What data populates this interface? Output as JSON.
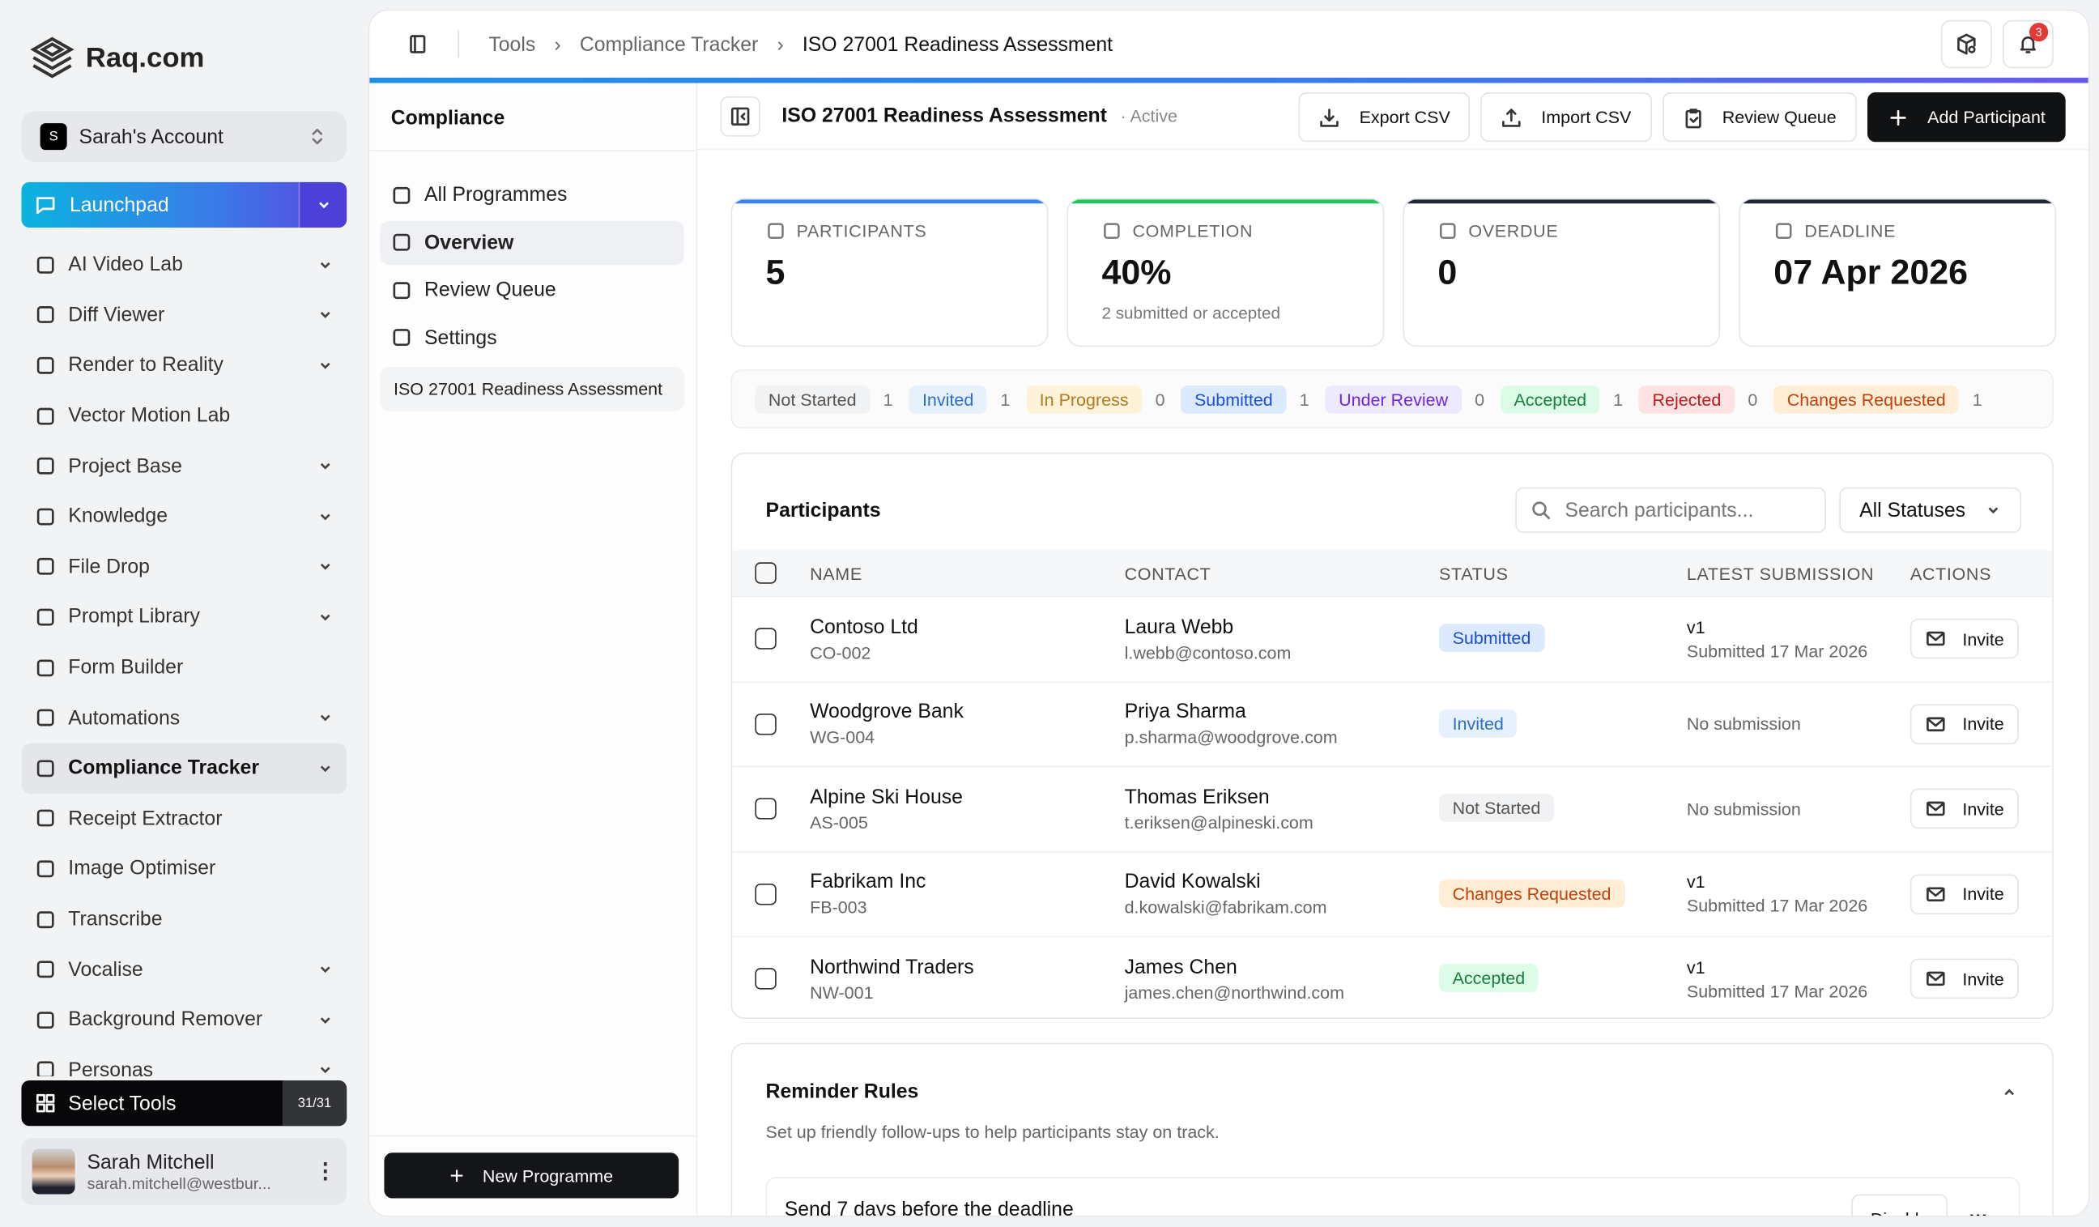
{
  "brand": {
    "name": "Raq.com"
  },
  "account": {
    "initial": "S",
    "name": "Sarah's Account"
  },
  "launchpad": {
    "label": "Launchpad"
  },
  "sidebar": {
    "items": [
      {
        "label": "AI Video Lab",
        "icon": "clapperboard-icon",
        "chevron": true
      },
      {
        "label": "Diff Viewer",
        "icon": "git-compare-icon",
        "chevron": true
      },
      {
        "label": "Render to Reality",
        "icon": "camera-rotate-icon",
        "chevron": true
      },
      {
        "label": "Vector Motion Lab",
        "icon": "pen-motion-icon",
        "chevron": false
      },
      {
        "label": "Project Base",
        "icon": "target-icon",
        "chevron": true
      },
      {
        "label": "Knowledge",
        "icon": "library-icon",
        "chevron": true
      },
      {
        "label": "File Drop",
        "icon": "cloud-upload-icon",
        "chevron": true
      },
      {
        "label": "Prompt Library",
        "icon": "book-open-icon",
        "chevron": true
      },
      {
        "label": "Form Builder",
        "icon": "clipboard-list-icon",
        "chevron": false
      },
      {
        "label": "Automations",
        "icon": "workflow-icon",
        "chevron": true
      },
      {
        "label": "Compliance Tracker",
        "icon": "shield-check-icon",
        "chevron": true,
        "active": true
      },
      {
        "label": "Receipt Extractor",
        "icon": "receipt-icon",
        "chevron": false
      },
      {
        "label": "Image Optimiser",
        "icon": "image-icon",
        "chevron": false
      },
      {
        "label": "Transcribe",
        "icon": "audio-lines-icon",
        "chevron": false
      },
      {
        "label": "Vocalise",
        "icon": "speech-icon",
        "chevron": true
      },
      {
        "label": "Background Remover",
        "icon": "image-off-icon",
        "chevron": true
      },
      {
        "label": "Personas",
        "icon": "persona-icon",
        "chevron": true
      }
    ]
  },
  "select_tools": {
    "label": "Select Tools",
    "count": "31/31"
  },
  "user": {
    "name": "Sarah Mitchell",
    "email": "sarah.mitchell@westbur..."
  },
  "breadcrumb": [
    "Tools",
    "Compliance Tracker",
    "ISO 27001 Readiness Assessment"
  ],
  "notifications": {
    "count": "3"
  },
  "subnav": {
    "title": "Compliance",
    "items": [
      {
        "label": "All Programmes",
        "icon": "list-icon"
      },
      {
        "label": "Overview",
        "icon": "shield-check-icon",
        "active": true
      },
      {
        "label": "Review Queue",
        "icon": "clipboard-check-icon"
      },
      {
        "label": "Settings",
        "icon": "gear-icon"
      }
    ],
    "programme": "ISO 27001 Readiness Assessment",
    "new_button": "New Programme"
  },
  "header": {
    "title": "ISO 27001 Readiness Assessment",
    "status": "Active",
    "actions": {
      "export": "Export CSV",
      "import": "Import CSV",
      "review": "Review Queue",
      "add": "Add Participant"
    }
  },
  "stats": [
    {
      "label": "PARTICIPANTS",
      "value": "5",
      "sub": "",
      "accent": "#3b82f6",
      "icon": "users-icon"
    },
    {
      "label": "COMPLETION",
      "value": "40%",
      "sub": "2 submitted or accepted",
      "accent": "#22c55e",
      "icon": "check-circle-icon"
    },
    {
      "label": "OVERDUE",
      "value": "0",
      "sub": "",
      "accent": "#1f2937",
      "icon": "alert-triangle-icon"
    },
    {
      "label": "DEADLINE",
      "value": "07 Apr 2026",
      "sub": "",
      "accent": "#1f2937",
      "icon": "calendar-clock-icon"
    }
  ],
  "status_counts": [
    {
      "label": "Not Started",
      "count": "1",
      "bg": "#f1f2f4",
      "fg": "#555"
    },
    {
      "label": "Invited",
      "count": "1",
      "bg": "#e6f1fd",
      "fg": "#2a6fc9"
    },
    {
      "label": "In Progress",
      "count": "0",
      "bg": "#fdf3d9",
      "fg": "#b7791f"
    },
    {
      "label": "Submitted",
      "count": "1",
      "bg": "#dbeafe",
      "fg": "#1d4ed8"
    },
    {
      "label": "Under Review",
      "count": "0",
      "bg": "#ede9fe",
      "fg": "#6d28d9"
    },
    {
      "label": "Accepted",
      "count": "1",
      "bg": "#dcfce7",
      "fg": "#15803d"
    },
    {
      "label": "Rejected",
      "count": "0",
      "bg": "#fee2e2",
      "fg": "#b91c1c"
    },
    {
      "label": "Changes Requested",
      "count": "1",
      "bg": "#ffedd5",
      "fg": "#c2410c"
    }
  ],
  "participants": {
    "title": "Participants",
    "search_placeholder": "Search participants...",
    "filter": "All Statuses",
    "columns": [
      "NAME",
      "CONTACT",
      "STATUS",
      "LATEST SUBMISSION",
      "ACTIONS"
    ],
    "rows": [
      {
        "name": "Contoso Ltd",
        "code": "CO-002",
        "contact": "Laura Webb",
        "email": "l.webb@contoso.com",
        "status": "Submitted",
        "status_bg": "#dbeafe",
        "status_fg": "#1d4ed8",
        "version": "v1",
        "submission": "Submitted 17 Mar 2026",
        "action": "Invite"
      },
      {
        "name": "Woodgrove Bank",
        "code": "WG-004",
        "contact": "Priya Sharma",
        "email": "p.sharma@woodgrove.com",
        "status": "Invited",
        "status_bg": "#e6f1fd",
        "status_fg": "#2a6fc9",
        "version": "",
        "submission": "No submission",
        "action": "Invite"
      },
      {
        "name": "Alpine Ski House",
        "code": "AS-005",
        "contact": "Thomas Eriksen",
        "email": "t.eriksen@alpineski.com",
        "status": "Not Started",
        "status_bg": "#f1f2f4",
        "status_fg": "#555",
        "version": "",
        "submission": "No submission",
        "action": "Invite"
      },
      {
        "name": "Fabrikam Inc",
        "code": "FB-003",
        "contact": "David Kowalski",
        "email": "d.kowalski@fabrikam.com",
        "status": "Changes Requested",
        "status_bg": "#ffedd5",
        "status_fg": "#c2410c",
        "version": "v1",
        "submission": "Submitted 17 Mar 2026",
        "action": "Invite"
      },
      {
        "name": "Northwind Traders",
        "code": "NW-001",
        "contact": "James Chen",
        "email": "james.chen@northwind.com",
        "status": "Accepted",
        "status_bg": "#dcfce7",
        "status_fg": "#15803d",
        "version": "v1",
        "submission": "Submitted 17 Mar 2026",
        "action": "Invite"
      }
    ]
  },
  "reminders": {
    "title": "Reminder Rules",
    "description": "Set up friendly follow-ups to help participants stay on track.",
    "rules": [
      {
        "label": "Send 7 days before the deadline",
        "action": "Disable"
      }
    ]
  }
}
